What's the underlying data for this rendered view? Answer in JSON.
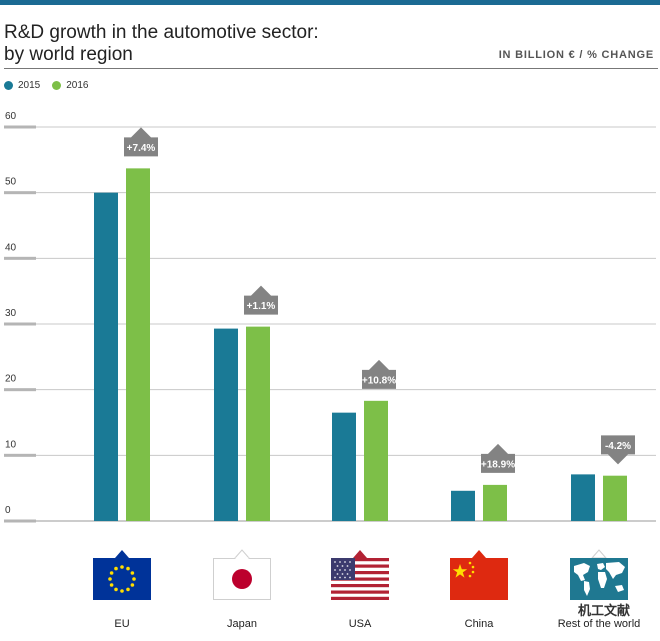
{
  "title_line1": "R&D growth in the automotive sector:",
  "title_line2": "by world region",
  "unit_label": "IN BILLION € / % CHANGE",
  "watermark": "机工文献",
  "colors": {
    "s2015": "#1a7a96",
    "s2016": "#7dbf48",
    "badge": "#838383",
    "grid": "#c8c8c8",
    "top_rule": "#1b6a93"
  },
  "chart_data": {
    "type": "bar",
    "title": "R&D growth in the automotive sector: by world region",
    "xlabel": "",
    "ylabel": "In billion € / % change",
    "ylim": [
      0,
      60
    ],
    "yticks": [
      "0",
      "10",
      "20",
      "30",
      "40",
      "50",
      "60"
    ],
    "categories": [
      "EU",
      "Japan",
      "USA",
      "China",
      "Rest of the world"
    ],
    "series": [
      {
        "name": "2015",
        "values": [
          50,
          29.3,
          16.5,
          4.6,
          7.1
        ]
      },
      {
        "name": "2016",
        "values": [
          53.7,
          29.6,
          18.3,
          5.5,
          6.9
        ]
      }
    ],
    "change_labels": [
      "+7.4%",
      "+1.1%",
      "+10.8%",
      "+18.9%",
      "-4.2%"
    ],
    "change_direction": [
      "up",
      "up",
      "up",
      "up",
      "down"
    ],
    "legend": [
      "2015",
      "2016"
    ],
    "legend_position": "top-left",
    "grid": true
  }
}
